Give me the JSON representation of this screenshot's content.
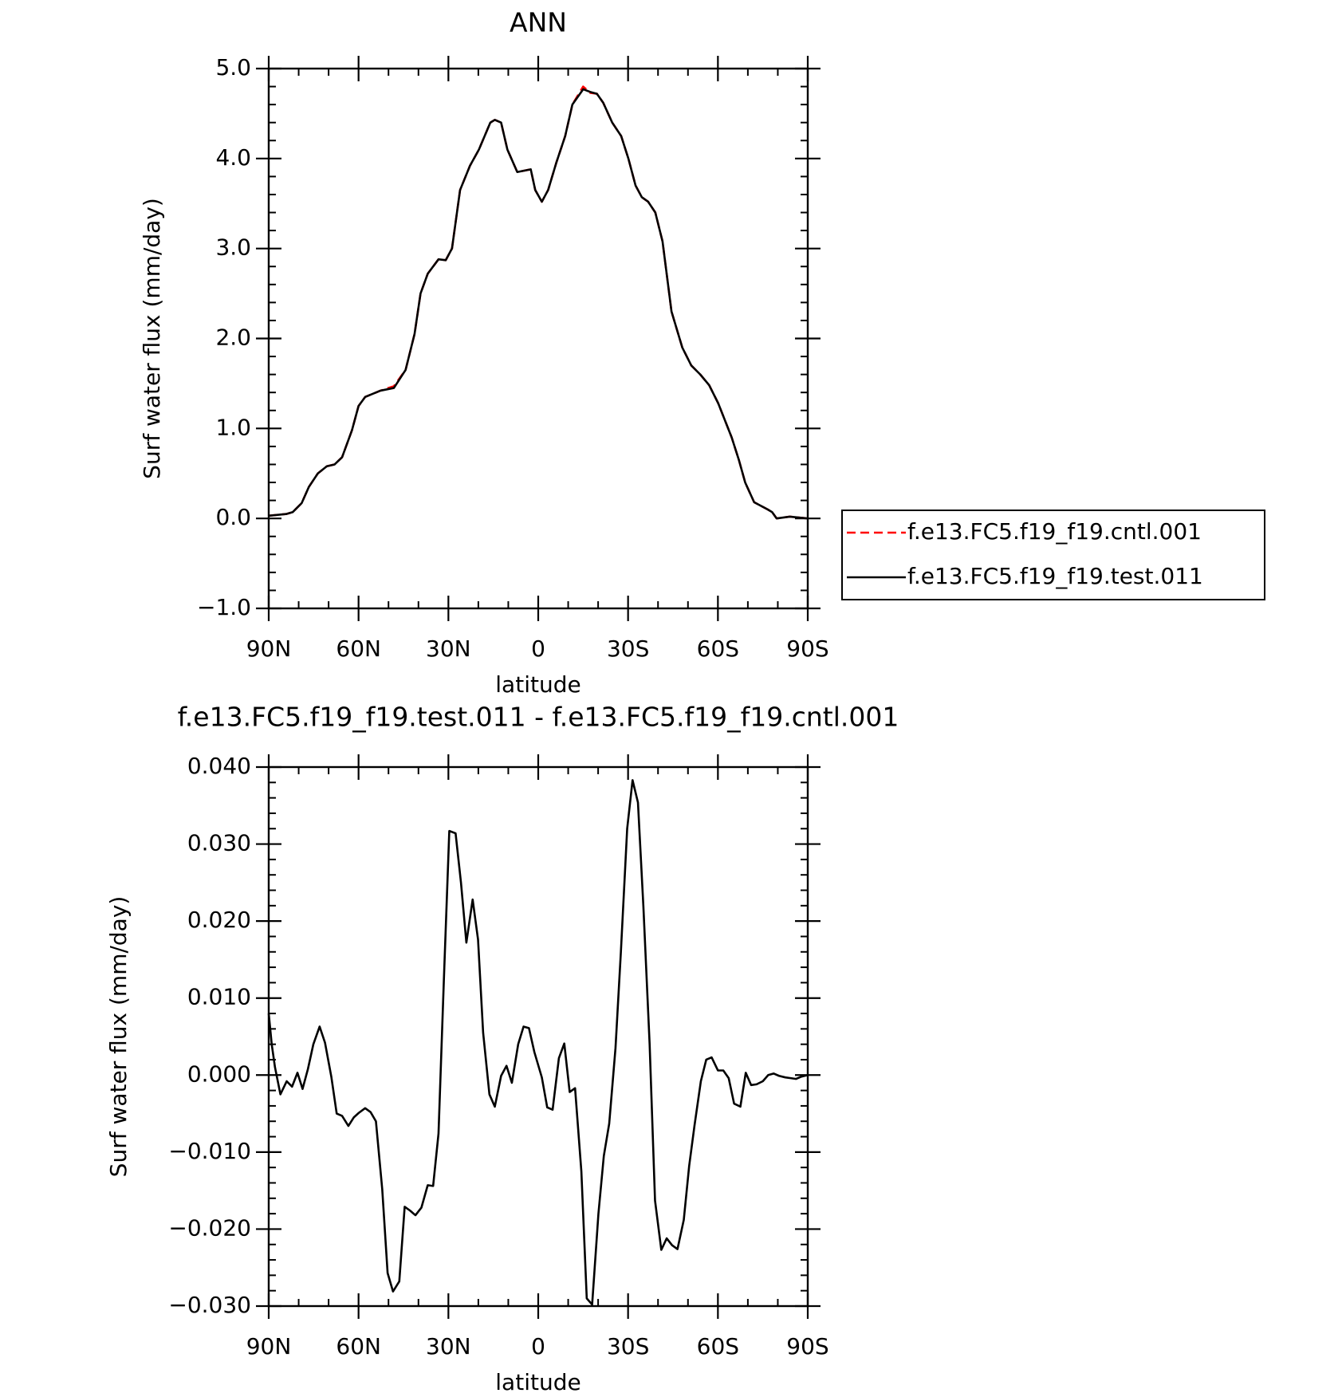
{
  "chart_data": [
    {
      "type": "line",
      "title": "ANN",
      "xlabel": "latitude",
      "ylabel": "Surf water flux (mm/day)",
      "xlim": [
        90,
        -90
      ],
      "xticks": [
        {
          "value": 90,
          "label": "90N"
        },
        {
          "value": 60,
          "label": "60N"
        },
        {
          "value": 30,
          "label": "30N"
        },
        0,
        {
          "value": -30,
          "label": "30S"
        },
        {
          "value": -60,
          "label": "60S"
        },
        {
          "value": -90,
          "label": "90S"
        }
      ],
      "ylim": [
        -1,
        5
      ],
      "yticks": [
        {
          "value": -1,
          "label": "−1.0"
        },
        {
          "value": 0,
          "label": "0.0"
        },
        {
          "value": 1,
          "label": "1.0"
        },
        {
          "value": 2,
          "label": "2.0"
        },
        {
          "value": 3,
          "label": "3.0"
        },
        {
          "value": 4,
          "label": "4.0"
        },
        {
          "value": 5,
          "label": "5.0"
        }
      ],
      "x_minor_divisions": 3,
      "y_minor_divisions": 5,
      "legend": "right",
      "x": [
        90,
        84,
        82,
        79,
        76.6,
        73.6,
        70.6,
        68,
        65.5,
        62.2,
        60,
        57.8,
        52.7,
        48.2,
        44.3,
        41.3,
        39.3,
        36.9,
        33.3,
        30.9,
        28.8,
        26.1,
        22.8,
        19.8,
        16,
        14.5,
        12.4,
        10.3,
        7,
        2.5,
        1,
        -1.2,
        -3.3,
        -6,
        -9,
        -11.4,
        -15,
        -17.4,
        -19.6,
        -21.7,
        -24.7,
        -27.7,
        -30.1,
        -32.5,
        -34.6,
        -36.7,
        -39.1,
        -41.5,
        -44.5,
        -48.1,
        -51.1,
        -54.1,
        -57.1,
        -60.1,
        -64.6,
        -67,
        -69.1,
        -72.1,
        -76.6,
        -78.1,
        -79.6,
        -84,
        -90
      ],
      "series": [
        {
          "name": "f.e13.FC5.f19_f19.cntl.001",
          "color": "#ff0000",
          "dashed": true,
          "values": [
            0.03,
            0.05,
            0.07,
            0.17,
            0.35,
            0.5,
            0.58,
            0.6,
            0.68,
            0.98,
            1.25,
            1.35,
            1.42,
            1.47,
            1.65,
            2.05,
            2.5,
            2.72,
            2.88,
            2.87,
            3.0,
            3.65,
            3.92,
            4.1,
            4.4,
            4.43,
            4.4,
            4.1,
            3.85,
            3.88,
            3.65,
            3.52,
            3.65,
            3.95,
            4.25,
            4.6,
            4.8,
            4.73,
            4.72,
            4.62,
            4.4,
            4.25,
            4.0,
            3.7,
            3.57,
            3.52,
            3.4,
            3.08,
            2.3,
            1.9,
            1.7,
            1.6,
            1.48,
            1.28,
            0.9,
            0.65,
            0.4,
            0.18,
            0.1,
            0.07,
            0.0,
            0.02,
            0.0
          ]
        },
        {
          "name": "f.e13.FC5.f19_f19.test.011",
          "color": "#000000",
          "dashed": false,
          "values": [
            0.03,
            0.05,
            0.07,
            0.17,
            0.35,
            0.5,
            0.58,
            0.6,
            0.68,
            0.98,
            1.25,
            1.35,
            1.42,
            1.45,
            1.65,
            2.05,
            2.5,
            2.72,
            2.88,
            2.87,
            3.0,
            3.65,
            3.92,
            4.1,
            4.4,
            4.43,
            4.4,
            4.1,
            3.85,
            3.88,
            3.65,
            3.52,
            3.65,
            3.95,
            4.25,
            4.6,
            4.77,
            4.74,
            4.72,
            4.62,
            4.4,
            4.25,
            4.0,
            3.7,
            3.57,
            3.52,
            3.4,
            3.08,
            2.3,
            1.9,
            1.7,
            1.6,
            1.48,
            1.28,
            0.9,
            0.65,
            0.4,
            0.18,
            0.1,
            0.07,
            0.0,
            0.02,
            0.0
          ]
        }
      ]
    },
    {
      "type": "line",
      "title": "f.e13.FC5.f19_f19.test.011 - f.e13.FC5.f19_f19.cntl.001",
      "xlabel": "latitude",
      "ylabel": "Surf water flux (mm/day)",
      "xlim": [
        90,
        -90
      ],
      "xticks": [
        {
          "value": 90,
          "label": "90N"
        },
        {
          "value": 60,
          "label": "60N"
        },
        {
          "value": 30,
          "label": "30N"
        },
        0,
        {
          "value": -30,
          "label": "30S"
        },
        {
          "value": -60,
          "label": "60S"
        },
        {
          "value": -90,
          "label": "90S"
        }
      ],
      "ylim": [
        -0.03,
        0.04
      ],
      "yticks": [
        {
          "value": -0.03,
          "label": "−0.030"
        },
        {
          "value": -0.02,
          "label": "−0.020"
        },
        {
          "value": -0.01,
          "label": "−0.010"
        },
        {
          "value": 0,
          "label": "0.000"
        },
        {
          "value": 0.01,
          "label": "0.010"
        },
        {
          "value": 0.02,
          "label": "0.020"
        },
        {
          "value": 0.03,
          "label": "0.030"
        },
        {
          "value": 0.04,
          "label": "0.040"
        }
      ],
      "x_minor_divisions": 3,
      "y_minor_divisions": 5,
      "x": [
        90,
        89,
        87.9,
        86.1,
        84,
        82.2,
        80.4,
        78.7,
        76.9,
        75.1,
        73,
        71.2,
        69.1,
        67.3,
        65.5,
        63.4,
        61.6,
        59.9,
        57.8,
        56,
        54.2,
        52.1,
        50.3,
        48.5,
        46.4,
        44.6,
        42.8,
        41,
        39,
        36.9,
        35.1,
        33.3,
        31.5,
        29.7,
        27.6,
        25.8,
        24,
        21.9,
        20.1,
        18.4,
        16.3,
        14.5,
        12.4,
        10.6,
        8.8,
        6.7,
        4.9,
        3.1,
        1.3,
        -1.2,
        -3,
        -4.8,
        -6.9,
        -8.7,
        -10.5,
        -12.3,
        -14.4,
        -16.2,
        -18,
        -20.1,
        -21.9,
        -23.7,
        -25.8,
        -27.6,
        -29.7,
        -31.5,
        -33.3,
        -35.1,
        -37.2,
        -39,
        -41.1,
        -42.9,
        -44.7,
        -46.5,
        -48.6,
        -50.4,
        -52.2,
        -54.3,
        -56.1,
        -57.9,
        -60,
        -61.8,
        -63.6,
        -65.4,
        -67.5,
        -69.3,
        -71.1,
        -72.9,
        -75,
        -76.8,
        -78.6,
        -80.4,
        -82.5,
        -84.3,
        -86.1,
        -87.9,
        -90
      ],
      "series": [
        {
          "color": "#000000",
          "dashed": false,
          "values": [
            0.008,
            0.004,
            0.001,
            -0.0025,
            -0.0008,
            -0.0015,
            0.0003,
            -0.0018,
            0.0008,
            0.004,
            0.0063,
            0.0042,
            -0.0002,
            -0.005,
            -0.0053,
            -0.0066,
            -0.0055,
            -0.0049,
            -0.0043,
            -0.0048,
            -0.006,
            -0.0148,
            -0.0257,
            -0.0281,
            -0.0268,
            -0.0171,
            -0.0176,
            -0.0182,
            -0.0172,
            -0.0143,
            -0.0144,
            -0.0076,
            0.0125,
            0.0317,
            0.0314,
            0.025,
            0.0172,
            0.0228,
            0.0176,
            0.0055,
            -0.0025,
            -0.0041,
            -0.0001,
            0.0012,
            -0.001,
            0.004,
            0.0063,
            0.0061,
            0.003,
            -0.0003,
            -0.0042,
            -0.0045,
            0.0022,
            0.0041,
            -0.0022,
            -0.0017,
            -0.0125,
            -0.029,
            -0.0298,
            -0.018,
            -0.0105,
            -0.0063,
            0.0035,
            0.016,
            0.032,
            0.0383,
            0.0354,
            0.022,
            0.004,
            -0.0163,
            -0.0227,
            -0.0212,
            -0.0221,
            -0.0226,
            -0.0188,
            -0.0118,
            -0.0065,
            -0.0008,
            0.002,
            0.0023,
            0.0006,
            0.0006,
            -0.0004,
            -0.0037,
            -0.0041,
            0.0003,
            -0.0013,
            -0.0012,
            -0.0008,
            0.0,
            0.0002,
            -0.0001,
            -0.0003,
            -0.0004,
            -0.0005,
            -0.0002,
            0.0
          ]
        }
      ]
    }
  ]
}
